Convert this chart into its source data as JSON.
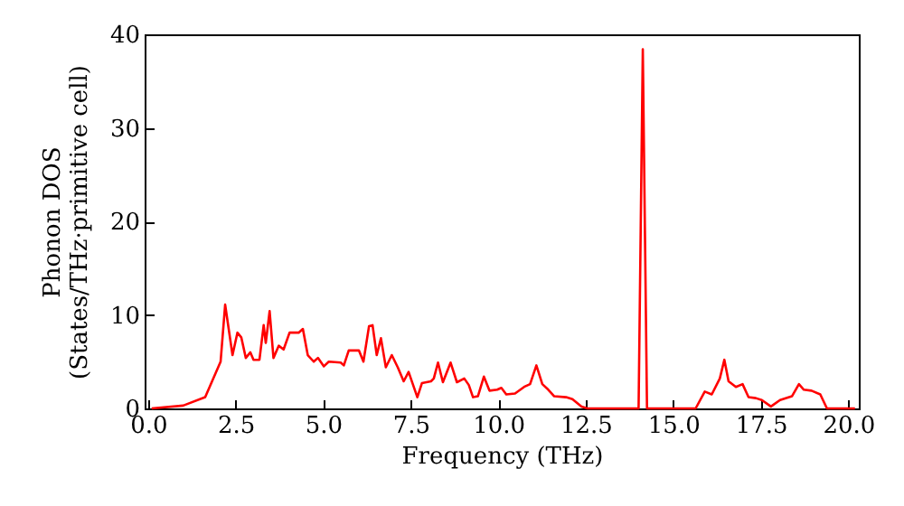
{
  "chart_data": {
    "type": "line",
    "xlabel": "Frequency (THz)",
    "ylabel": "Phonon DOS\n(States/THz·primitive cell)",
    "xlim": [
      -0.1,
      20.3
    ],
    "ylim": [
      0,
      40
    ],
    "xticks": [
      {
        "value": 0,
        "label": "0.0"
      },
      {
        "value": 2.5,
        "label": "2.5"
      },
      {
        "value": 5,
        "label": "5.0"
      },
      {
        "value": 7.5,
        "label": "7.5"
      },
      {
        "value": 10,
        "label": "10.0"
      },
      {
        "value": 12.5,
        "label": "12.5"
      },
      {
        "value": 15,
        "label": "15.0"
      },
      {
        "value": 17.5,
        "label": "17.5"
      },
      {
        "value": 20,
        "label": "20.0"
      }
    ],
    "yticks": [
      0,
      10,
      20,
      30,
      40
    ],
    "grid": false,
    "marker": "none",
    "line_style": "solid",
    "series": [
      {
        "color": "#ff0000",
        "x": [
          0.1,
          1.0,
          1.63,
          2.07,
          2.2,
          2.41,
          2.55,
          2.66,
          2.79,
          2.92,
          3.01,
          3.18,
          3.3,
          3.36,
          3.47,
          3.58,
          3.73,
          3.87,
          4.04,
          4.3,
          4.42,
          4.56,
          4.73,
          4.85,
          5.02,
          5.16,
          5.5,
          5.59,
          5.73,
          6.02,
          6.15,
          6.31,
          6.41,
          6.53,
          6.65,
          6.79,
          6.96,
          7.13,
          7.3,
          7.44,
          7.69,
          7.82,
          8.08,
          8.16,
          8.28,
          8.42,
          8.64,
          8.82,
          9.03,
          9.16,
          9.28,
          9.42,
          9.59,
          9.75,
          9.97,
          10.09,
          10.23,
          10.48,
          10.74,
          10.91,
          11.09,
          11.26,
          11.43,
          11.6,
          11.94,
          12.12,
          12.38,
          12.55,
          14.01,
          14.13,
          14.25,
          15.64,
          15.9,
          16.1,
          16.33,
          16.46,
          16.58,
          16.79,
          16.98,
          17.15,
          17.36,
          17.53,
          17.79,
          18.05,
          18.39,
          18.59,
          18.73,
          18.95,
          19.2,
          19.39,
          20.19
        ],
        "values": [
          0,
          0.3,
          1.2,
          5.0,
          11.1,
          5.7,
          8.1,
          7.6,
          5.4,
          6.0,
          5.2,
          5.2,
          8.9,
          7.0,
          10.4,
          5.4,
          6.7,
          6.3,
          8.1,
          8.1,
          8.5,
          5.7,
          5.0,
          5.4,
          4.5,
          5.0,
          4.9,
          4.6,
          6.2,
          6.2,
          5.0,
          8.8,
          8.9,
          5.7,
          7.5,
          4.4,
          5.7,
          4.4,
          2.9,
          3.9,
          1.2,
          2.7,
          2.9,
          3.2,
          4.9,
          2.8,
          4.9,
          2.8,
          3.2,
          2.5,
          1.2,
          1.3,
          3.4,
          1.9,
          2.0,
          2.2,
          1.5,
          1.6,
          2.3,
          2.6,
          4.6,
          2.6,
          2.0,
          1.3,
          1.2,
          1.0,
          0.2,
          0,
          0,
          38.4,
          0,
          0,
          1.8,
          1.5,
          3.2,
          5.2,
          2.9,
          2.3,
          2.6,
          1.2,
          1.1,
          0.9,
          0.2,
          0.9,
          1.3,
          2.6,
          2.0,
          1.9,
          1.5,
          0,
          0
        ]
      }
    ]
  }
}
